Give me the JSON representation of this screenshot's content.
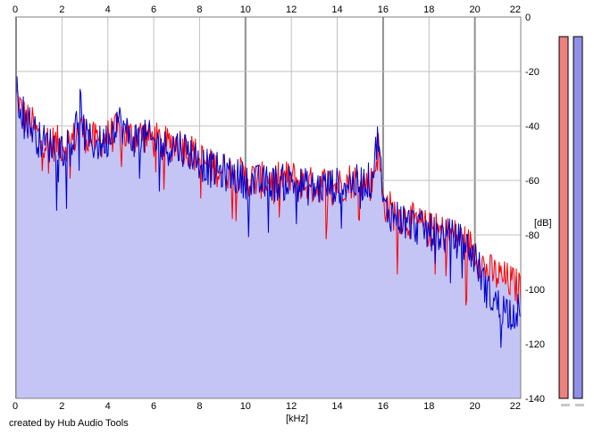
{
  "footer": {
    "credit": "created by Hub Audio Tools"
  },
  "chart_data": {
    "type": "area",
    "title": "",
    "xlabel": "[kHz]",
    "ylabel": "[dB]",
    "xlim": [
      0,
      22
    ],
    "ylim": [
      -140,
      0
    ],
    "x_ticks": [
      0,
      2,
      4,
      6,
      8,
      10,
      12,
      14,
      16,
      18,
      20,
      22
    ],
    "y_ticks": [
      0,
      -20,
      -40,
      -60,
      -80,
      -100,
      -120,
      -140
    ],
    "grid": true,
    "legend": "none",
    "colors": {
      "left_channel": "#ff0000",
      "right_channel": "#0000cc",
      "fill": "#c4c4f5",
      "meter_left": "#f08080",
      "meter_right": "#9090e8",
      "grid": "#c0c0c0",
      "major_grid": "#909090"
    },
    "series": [
      {
        "color": "#ff0000",
        "x": [
          0,
          0.25,
          0.5,
          0.75,
          1,
          1.5,
          2,
          2.5,
          2.8,
          3,
          3.5,
          4,
          4.4,
          5,
          5.5,
          6,
          6.5,
          7,
          7.5,
          8,
          8.5,
          9,
          9.5,
          10,
          10.5,
          11,
          11.5,
          12,
          12.5,
          13,
          13.5,
          14,
          14.5,
          15,
          15.5,
          15.8,
          16,
          16.5,
          17,
          17.5,
          18,
          18.5,
          19,
          19.5,
          20,
          20.5,
          21,
          21.5,
          22
        ],
        "values": [
          -28,
          -35,
          -38,
          -40,
          -44,
          -46,
          -47,
          -45,
          -40,
          -43,
          -46,
          -44,
          -42,
          -44,
          -43,
          -45,
          -47,
          -46,
          -48,
          -52,
          -55,
          -56,
          -57,
          -59,
          -60,
          -60,
          -60,
          -59,
          -61,
          -62,
          -61,
          -62,
          -60,
          -60,
          -61,
          -48,
          -68,
          -72,
          -74,
          -76,
          -78,
          -79,
          -80,
          -82,
          -86,
          -93,
          -95,
          -97,
          -100
        ]
      },
      {
        "color": "#0000cc",
        "x": [
          0,
          0.25,
          0.5,
          0.75,
          1,
          1.5,
          2,
          2.5,
          2.8,
          3,
          3.5,
          4,
          4.4,
          5,
          5.5,
          6,
          6.5,
          7,
          7.5,
          8,
          8.5,
          9,
          9.5,
          10,
          10.5,
          11,
          11.5,
          12,
          12.5,
          13,
          13.5,
          14,
          14.5,
          15,
          15.5,
          15.8,
          16,
          16.5,
          17,
          17.5,
          18,
          18.5,
          19,
          19.5,
          20,
          20.5,
          21,
          21.5,
          22
        ],
        "values": [
          -27,
          -34,
          -38,
          -41,
          -45,
          -47,
          -48,
          -45,
          -32,
          -44,
          -47,
          -45,
          -37,
          -45,
          -44,
          -46,
          -48,
          -47,
          -49,
          -53,
          -56,
          -57,
          -58,
          -60,
          -61,
          -61,
          -61,
          -60,
          -62,
          -63,
          -62,
          -62,
          -61,
          -61,
          -60,
          -42,
          -70,
          -73,
          -75,
          -77,
          -79,
          -80,
          -81,
          -83,
          -88,
          -100,
          -106,
          -108,
          -108
        ]
      }
    ]
  }
}
